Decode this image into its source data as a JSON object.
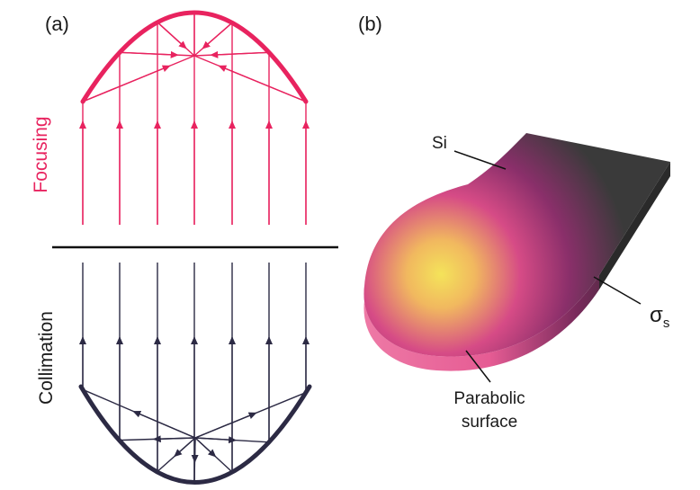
{
  "panel_a": {
    "label": "(a)",
    "top_label": "Focusing",
    "bottom_label": "Collimation",
    "focus_color": "#e8235f",
    "collim_color": "#2c2a44"
  },
  "panel_b": {
    "label": "(b)",
    "si_label": "Si",
    "sigma_main": "σ",
    "sigma_sub": "s",
    "surface_line1": "Parabolic",
    "surface_line2": "surface",
    "slab_color": "#3a3a3a",
    "glow_center_color": "#f3e05a",
    "glow_edge_color": "#e0558c"
  }
}
